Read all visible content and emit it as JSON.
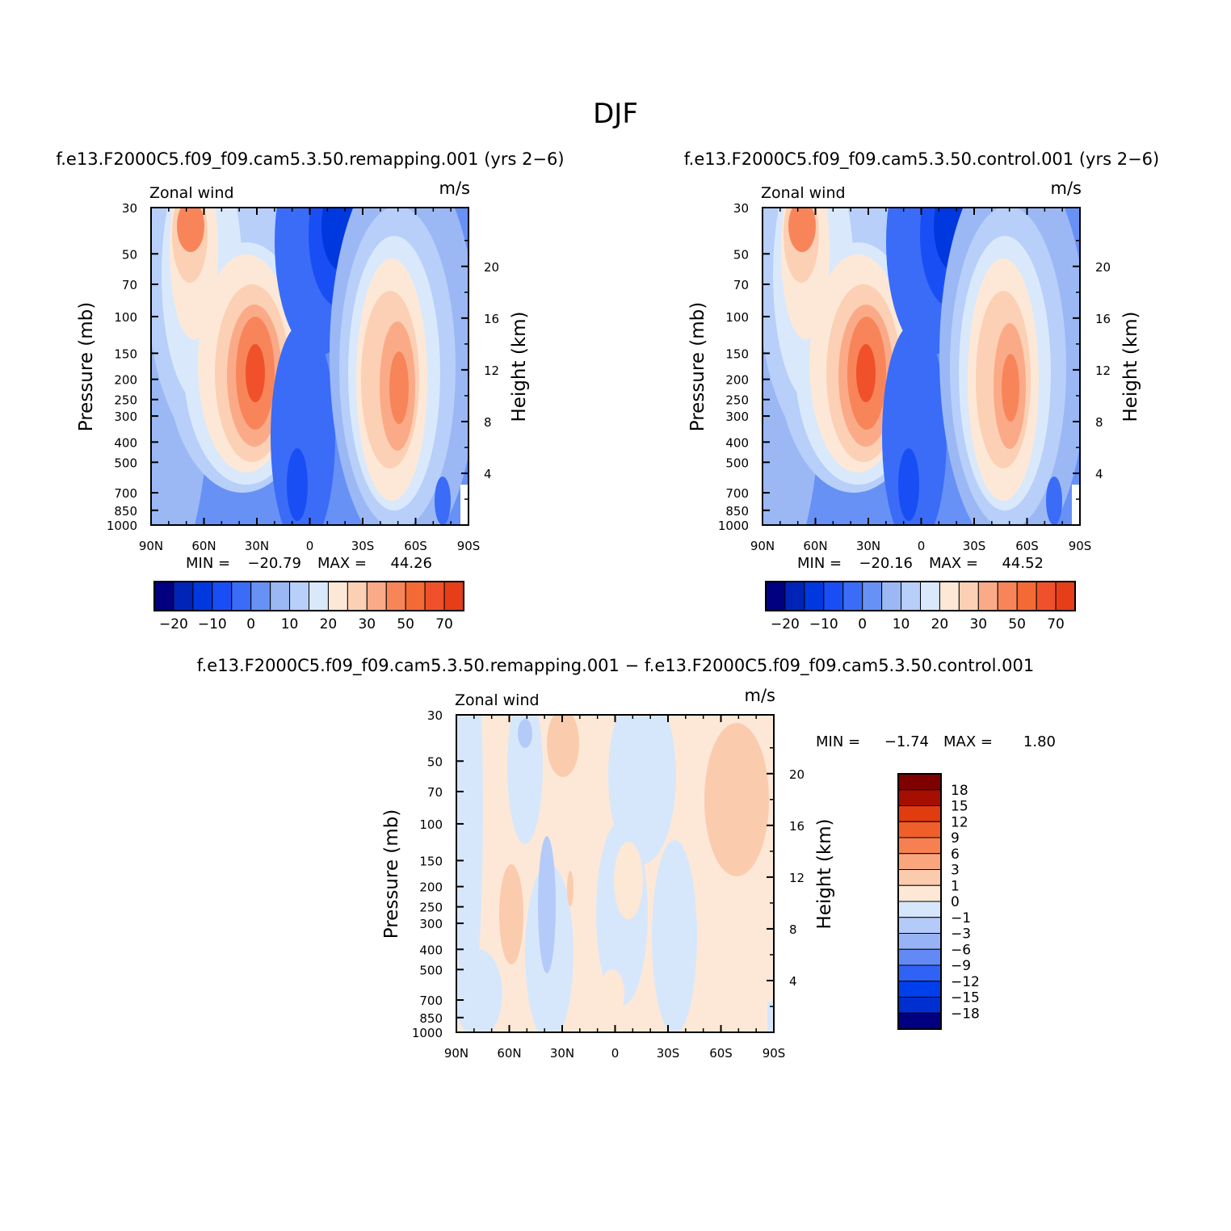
{
  "title": "DJF",
  "colors": {
    "absolute_levels": [
      "#000080",
      "#0024b8",
      "#0038e0",
      "#1a4ef5",
      "#3a6cf8",
      "#6791f5",
      "#9bb8f5",
      "#b7cff9",
      "#d9e9fb",
      "#fde8d7",
      "#fcd0b4",
      "#fbaa88",
      "#f8855a",
      "#f46a35",
      "#f0512a",
      "#e63e18",
      "#b82d0a",
      "#7f0000"
    ],
    "diff_levels": [
      "#000080",
      "#002fd0",
      "#0040ec",
      "#3062f5",
      "#6389f5",
      "#98b3f5",
      "#b4cbf9",
      "#d7e7fb",
      "#fde7d5",
      "#fbcbae",
      "#f9a67f",
      "#f68050",
      "#f05e2a",
      "#e13b10",
      "#a50e00"
    ]
  },
  "chart_data": [
    {
      "type": "heatmap",
      "case": "f.e13.F2000C5.f09_f09.cam5.3.50.remapping.001  (yrs 2−6)",
      "variable": "Zonal wind",
      "units": "m/s",
      "ylabel": "Pressure (mb)",
      "ylabel_right": "Height (km)",
      "x_ticks": [
        "90N",
        "60N",
        "30N",
        "0",
        "30S",
        "60S",
        "90S"
      ],
      "y_ticks": [
        "30",
        "50",
        "70",
        "100",
        "150",
        "200",
        "250",
        "300",
        "400",
        "500",
        "700",
        "850",
        "1000"
      ],
      "y_ticks_right": [
        "20",
        "16",
        "12",
        "8",
        "4"
      ],
      "min": "−20.79",
      "max": "44.26",
      "min_label": "MIN =",
      "max_label": "MAX =",
      "colorbar_labels": [
        "−20",
        "−10",
        "0",
        "10",
        "20",
        "30",
        "50",
        "70"
      ]
    },
    {
      "type": "heatmap",
      "case": "f.e13.F2000C5.f09_f09.cam5.3.50.control.001  (yrs 2−6)",
      "variable": "Zonal wind",
      "units": "m/s",
      "ylabel": "Pressure (mb)",
      "ylabel_right": "Height (km)",
      "x_ticks": [
        "90N",
        "60N",
        "30N",
        "0",
        "30S",
        "60S",
        "90S"
      ],
      "y_ticks": [
        "30",
        "50",
        "70",
        "100",
        "150",
        "200",
        "250",
        "300",
        "400",
        "500",
        "700",
        "850",
        "1000"
      ],
      "y_ticks_right": [
        "20",
        "16",
        "12",
        "8",
        "4"
      ],
      "min": "−20.16",
      "max": "44.52",
      "min_label": "MIN =",
      "max_label": "MAX =",
      "colorbar_labels": [
        "−20",
        "−10",
        "0",
        "10",
        "20",
        "30",
        "50",
        "70"
      ]
    },
    {
      "type": "heatmap",
      "case": "f.e13.F2000C5.f09_f09.cam5.3.50.remapping.001  −  f.e13.F2000C5.f09_f09.cam5.3.50.control.001",
      "variable": "Zonal wind",
      "units": "m/s",
      "ylabel": "Pressure (mb)",
      "ylabel_right": "Height (km)",
      "x_ticks": [
        "90N",
        "60N",
        "30N",
        "0",
        "30S",
        "60S",
        "90S"
      ],
      "y_ticks": [
        "30",
        "50",
        "70",
        "100",
        "150",
        "200",
        "250",
        "300",
        "400",
        "500",
        "700",
        "850",
        "1000"
      ],
      "y_ticks_right": [
        "20",
        "16",
        "12",
        "8",
        "4"
      ],
      "min": "−1.74",
      "max": "1.80",
      "min_label": "MIN =",
      "max_label": "MAX =",
      "colorbar_labels": [
        "18",
        "15",
        "12",
        "9",
        "6",
        "3",
        "1",
        "0",
        "−1",
        "−3",
        "−6",
        "−9",
        "−12",
        "−15",
        "−18"
      ]
    }
  ]
}
